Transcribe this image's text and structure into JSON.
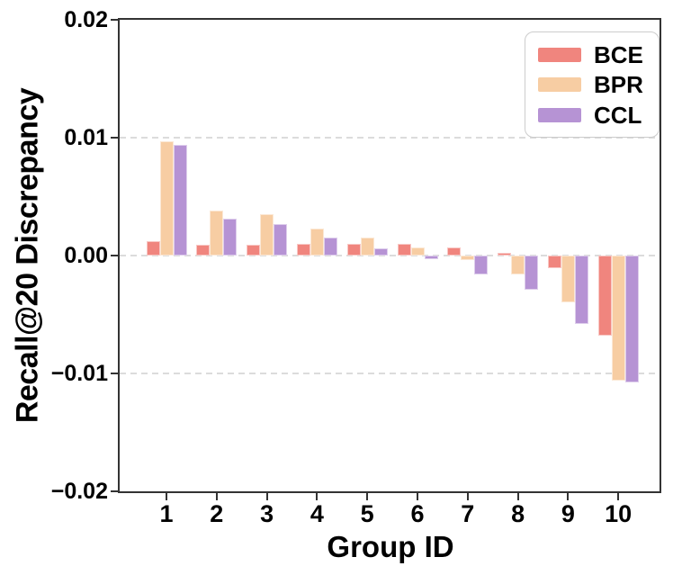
{
  "chart_data": {
    "type": "bar",
    "title": "",
    "xlabel": "Group ID",
    "ylabel": "Recall@20 Discrepancy",
    "categories": [
      "1",
      "2",
      "3",
      "4",
      "5",
      "6",
      "7",
      "8",
      "9",
      "10"
    ],
    "series": [
      {
        "name": "BCE",
        "color": "#F0857E",
        "values": [
          0.0012,
          0.0009,
          0.0009,
          0.001,
          0.001,
          0.001,
          0.0007,
          0.0002,
          -0.0011,
          -0.0068
        ]
      },
      {
        "name": "BPR",
        "color": "#F7CDA3",
        "values": [
          0.0097,
          0.0038,
          0.0035,
          0.0023,
          0.0015,
          0.0007,
          -0.0004,
          -0.0016,
          -0.004,
          -0.0106
        ]
      },
      {
        "name": "CCL",
        "color": "#B693D4",
        "values": [
          0.0094,
          0.0031,
          0.0027,
          0.0015,
          0.0006,
          -0.0003,
          -0.0016,
          -0.0029,
          -0.0058,
          -0.0108
        ]
      }
    ],
    "ylim": [
      -0.02,
      0.02
    ],
    "yticks": [
      {
        "value": 0.02,
        "label": "0.02"
      },
      {
        "value": 0.01,
        "label": "0.01"
      },
      {
        "value": 0.0,
        "label": "0.00"
      },
      {
        "value": -0.01,
        "label": "−0.01"
      },
      {
        "value": -0.02,
        "label": "−0.02"
      }
    ],
    "gridlines": {
      "values": [
        0.01,
        0.0,
        -0.01
      ],
      "style": "dashed",
      "color": "#dcdcdc"
    },
    "legend": {
      "position": "top-right",
      "entries": [
        "BCE",
        "BPR",
        "CCL"
      ]
    },
    "axis_color": "#333333",
    "grid_on": true
  }
}
